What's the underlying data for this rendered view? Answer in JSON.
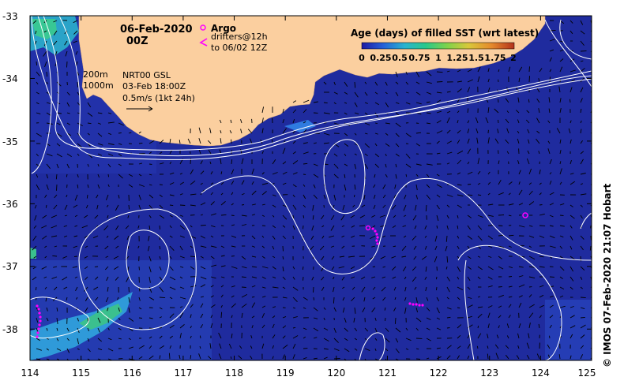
{
  "map": {
    "date": "06-Feb-2020",
    "time": "00Z",
    "argo_label": "Argo",
    "drifters_label": "drifters@12h",
    "drifters_range": "to 06/02 12Z",
    "isobath_200": "200m",
    "isobath_1000": "1000m",
    "altimetry_product": "NRT00 GSL",
    "altimetry_time": "03-Feb 18:00Z",
    "velocity_scale": "0.5m/s (1kt 24h)",
    "credit": "© IMOS 07-Feb-2020 21:07 Hobart"
  },
  "colorbar": {
    "title": "Age (days) of filled SST (wrt latest)",
    "ticks": [
      "0",
      "0.25",
      "0.5",
      "0.75",
      "1",
      "1.25",
      "1.5",
      "1.75",
      "2"
    ],
    "range": [
      0,
      2
    ],
    "colors": [
      "#1d1aa3",
      "#2660d8",
      "#28b3d0",
      "#29c98a",
      "#7fd34b",
      "#d9c83a",
      "#e58a2d",
      "#b3321c"
    ]
  },
  "axes": {
    "lon_ticks": [
      "114",
      "115",
      "116",
      "117",
      "118",
      "119",
      "120",
      "121",
      "122",
      "123",
      "124",
      "125"
    ],
    "lat_ticks": [
      "-33",
      "-34",
      "-35",
      "-36",
      "-37",
      "-38"
    ],
    "lon_range": [
      114,
      125
    ],
    "lat_range": [
      -38.5,
      -33
    ]
  },
  "colors": {
    "ocean": "#1f2b9e",
    "land": "#fbcf9f",
    "contour": "#ffffff",
    "argo": "#ff00ff",
    "drifter": "#ff00ff"
  }
}
